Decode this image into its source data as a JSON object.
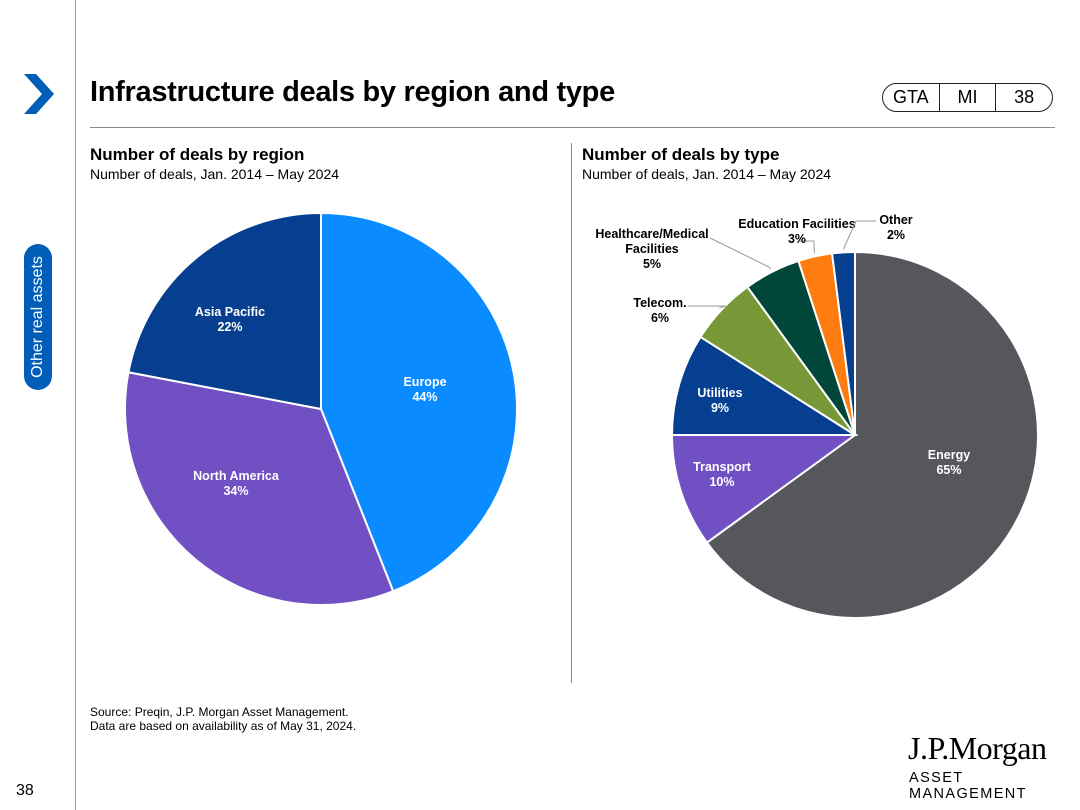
{
  "header": {
    "title": "Infrastructure deals by region and type",
    "tags": [
      "GTA",
      "MI",
      "38"
    ]
  },
  "sidebar": {
    "section_label": "Other real assets",
    "page_number": "38"
  },
  "footer": {
    "source_line1": "Source: Preqin, J.P. Morgan Asset Management.",
    "source_line2": "Data are based on availability as of May 31, 2024.",
    "logo_name": "J.P.Morgan",
    "logo_sub": "ASSET MANAGEMENT"
  },
  "colors": {
    "brand_blue": "#005EB8",
    "europe": "#0A8BFF",
    "north_america": "#7150C4",
    "asia_pacific": "#073F90",
    "energy": "#56575C",
    "transport": "#7150C4",
    "utilities": "#073F90",
    "telecom": "#789736",
    "healthcare": "#00463A",
    "education": "#FF7C10",
    "other": "#073F90"
  },
  "chart_data": [
    {
      "type": "pie",
      "title": "Number of deals by region",
      "subtitle": "Number of deals, Jan. 2014 – May 2024",
      "slices": [
        {
          "label": "Europe",
          "value": 44,
          "value_label": "44%",
          "color": "#0A8BFF"
        },
        {
          "label": "North America",
          "value": 34,
          "value_label": "34%",
          "color": "#7150C4"
        },
        {
          "label": "Asia Pacific",
          "value": 22,
          "value_label": "22%",
          "color": "#073F90"
        }
      ]
    },
    {
      "type": "pie",
      "title": "Number of deals by type",
      "subtitle": "Number of deals, Jan. 2014 – May 2024",
      "slices": [
        {
          "label": "Energy",
          "value": 65,
          "value_label": "65%",
          "color": "#56575C"
        },
        {
          "label": "Transport",
          "value": 10,
          "value_label": "10%",
          "color": "#7150C4"
        },
        {
          "label": "Utilities",
          "value": 9,
          "value_label": "9%",
          "color": "#073F90"
        },
        {
          "label": "Telecom.",
          "value": 6,
          "value_label": "6%",
          "color": "#789736"
        },
        {
          "label": "Healthcare/Medical Facilities",
          "value": 5,
          "value_label": "5%",
          "color": "#00463A"
        },
        {
          "label": "Education Facilities",
          "value": 3,
          "value_label": "3%",
          "color": "#FF7C10"
        },
        {
          "label": "Other",
          "value": 2,
          "value_label": "2%",
          "color": "#073F90"
        }
      ]
    }
  ]
}
